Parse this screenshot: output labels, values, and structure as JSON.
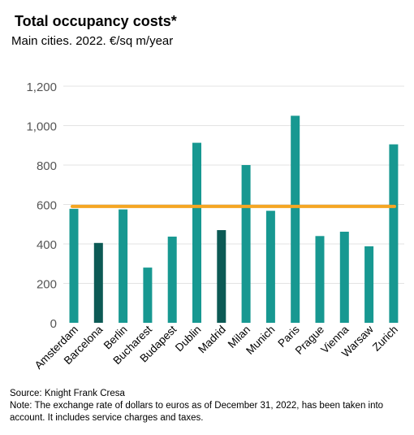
{
  "title": "Total occupancy costs*",
  "subtitle": "Main cities. 2022. €/sq m/year",
  "source": "Source: Knight Frank Cresa",
  "note": "Note: The exchange rate of dollars to euros as of December 31, 2022, has been taken into account. It includes service charges and taxes.",
  "colors": {
    "bar": "#179891",
    "highlight": "#0c5a55",
    "average": "#f5a623",
    "grid": "#e3e3e3",
    "tick": "#555555"
  },
  "chart_data": {
    "type": "bar",
    "categories": [
      "Amsterdam",
      "Barcelona",
      "Berlin",
      "Bucharest",
      "Budapest",
      "Dublin",
      "Madrid",
      "Milan",
      "Munich",
      "Paris",
      "Prague",
      "Vienna",
      "Warsaw",
      "Zurich"
    ],
    "values": [
      578,
      405,
      575,
      280,
      437,
      913,
      470,
      800,
      568,
      1050,
      440,
      462,
      388,
      905
    ],
    "highlighted": [
      "Barcelona",
      "Madrid"
    ],
    "reference_line": 590,
    "ylim": [
      0,
      1200
    ],
    "yticks": [
      0,
      200,
      400,
      600,
      800,
      1000,
      1200
    ],
    "ytick_labels": [
      "0",
      "200",
      "400",
      "600",
      "800",
      "1,000",
      "1,200"
    ],
    "grid": true
  }
}
